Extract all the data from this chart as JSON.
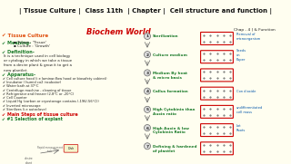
{
  "title_bar": "| Tissue Culture |  Class 11th  | Chapter |  Cell structure and function |",
  "title_bg": "#f5c518",
  "title_fg": "#111111",
  "bg_color": "#fffef0",
  "subheading": "Biochem World",
  "chap_label": "Chap - 4 | & Function",
  "tissue_heading": "✔ Tissue Culture",
  "meaning_label": "✔ Meaning-",
  "meaning_items": [
    "Tissue : 'Tissue'",
    "Culture : 'Growth'"
  ],
  "definition_label": "✔ Definition-",
  "definition_text": "It is a technique used in cell biology\nor cytology in which we take a tissue\nfrom a desire plant & grow it to get a\nnew plantlet.",
  "apparatus_label": "✔ Apparatus-",
  "apparatus_items": [
    "✔ Cell culture hood (i.e laminar-flow hood or biosafety cabinet)",
    "✔ Incubator ( humid co2 incubator)",
    "✔ Water bath at 37°C",
    "✔ Centrifuge machine - cleaning of tissue",
    "✔ Refrigerator and freezer (2-8°C or -20°C)",
    "✔ Cell Counter",
    "✔ Liquid Hg (carbon or cryostorage contains (-196/-56°C))",
    "✔ Inverted microscope",
    "✔ Sterilizes (i.e autoclave)"
  ],
  "main_steps_label": "✔ Main Steps of tissue culture",
  "step1_label": "✔ #1 Selection of explant",
  "right_steps": [
    {
      "num": "1",
      "label": "Sterilization",
      "note": "Removal of\nmicroorganism"
    },
    {
      "num": "2",
      "label": "Culture medium",
      "note": "Seeds\non\nPaper"
    },
    {
      "num": "3",
      "label": "Medium By heat\n& micro basis",
      "note": ""
    },
    {
      "num": "4",
      "label": "Callus formation",
      "note": "Con dioxide"
    },
    {
      "num": "5",
      "label": "High Cytokinin than\nAuxin ratio",
      "note": "undifferentiated\ncell mass"
    },
    {
      "num": "6",
      "label": "High Auxin & low\nCytokinin Ratio",
      "note": "Lot\nRoots"
    },
    {
      "num": "7",
      "label": "Defining & hardened\nof plantlet",
      "note": ""
    }
  ],
  "green": "#1a7a2a",
  "red": "#cc0000",
  "orange": "#e05010",
  "blue": "#0055aa",
  "dark": "#222222",
  "gray": "#666666"
}
